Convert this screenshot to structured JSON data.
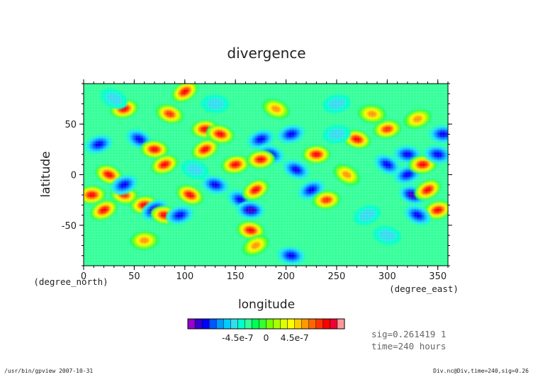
{
  "chart_data": {
    "type": "heatmap",
    "title": "divergence",
    "xlabel": "longitude",
    "ylabel": "latitude",
    "x_unit": "(degree_east)",
    "y_unit": "(degree_north)",
    "xlim": [
      0,
      360
    ],
    "ylim": [
      -90,
      90
    ],
    "x_ticks": [
      0,
      50,
      100,
      150,
      200,
      250,
      300,
      350
    ],
    "y_ticks": [
      -50,
      0,
      50
    ],
    "colorbar": {
      "tick_labels": [
        "-4.5e-7",
        "0",
        "4.5e-7"
      ],
      "colors": [
        "#9900cc",
        "#3300cc",
        "#0000ff",
        "#0055ff",
        "#0099ff",
        "#00ccff",
        "#33ddee",
        "#00ffcc",
        "#33ff99",
        "#00ff55",
        "#33ff33",
        "#77ff00",
        "#aaff00",
        "#ddff00",
        "#ffff00",
        "#ffcc00",
        "#ff9900",
        "#ff6600",
        "#ff3300",
        "#ff0000",
        "#ee0033",
        "#ff9999"
      ]
    },
    "features": [
      {
        "lon": 100,
        "lat": 82,
        "level": 19
      },
      {
        "lon": 205,
        "lat": -80,
        "level": 2
      },
      {
        "lon": 15,
        "lat": 30,
        "level": 2
      },
      {
        "lon": 25,
        "lat": 0,
        "level": 19
      },
      {
        "lon": 8,
        "lat": -20,
        "level": 19
      },
      {
        "lon": 20,
        "lat": -35,
        "level": 19
      },
      {
        "lon": 40,
        "lat": -20,
        "level": 18
      },
      {
        "lon": 40,
        "lat": 65,
        "level": 19
      },
      {
        "lon": 55,
        "lat": 35,
        "level": 2
      },
      {
        "lon": 70,
        "lat": 25,
        "level": 19
      },
      {
        "lon": 80,
        "lat": 10,
        "level": 19
      },
      {
        "lon": 85,
        "lat": 60,
        "level": 18
      },
      {
        "lon": 60,
        "lat": -30,
        "level": 19
      },
      {
        "lon": 70,
        "lat": -35,
        "level": 1
      },
      {
        "lon": 80,
        "lat": -40,
        "level": 19
      },
      {
        "lon": 95,
        "lat": -40,
        "level": 2
      },
      {
        "lon": 105,
        "lat": -20,
        "level": 19
      },
      {
        "lon": 120,
        "lat": 45,
        "level": 19
      },
      {
        "lon": 120,
        "lat": 25,
        "level": 19
      },
      {
        "lon": 135,
        "lat": 40,
        "level": 19
      },
      {
        "lon": 150,
        "lat": 10,
        "level": 19
      },
      {
        "lon": 155,
        "lat": -25,
        "level": 2
      },
      {
        "lon": 165,
        "lat": -35,
        "level": 1
      },
      {
        "lon": 175,
        "lat": 35,
        "level": 2
      },
      {
        "lon": 185,
        "lat": 20,
        "level": 2
      },
      {
        "lon": 175,
        "lat": 15,
        "level": 19
      },
      {
        "lon": 170,
        "lat": -15,
        "level": 19
      },
      {
        "lon": 165,
        "lat": -55,
        "level": 19
      },
      {
        "lon": 205,
        "lat": 40,
        "level": 2
      },
      {
        "lon": 210,
        "lat": 5,
        "level": 2
      },
      {
        "lon": 230,
        "lat": 20,
        "level": 19
      },
      {
        "lon": 225,
        "lat": -15,
        "level": 2
      },
      {
        "lon": 270,
        "lat": 35,
        "level": 19
      },
      {
        "lon": 300,
        "lat": 45,
        "level": 18
      },
      {
        "lon": 300,
        "lat": 10,
        "level": 2
      },
      {
        "lon": 320,
        "lat": 20,
        "level": 2
      },
      {
        "lon": 320,
        "lat": 0,
        "level": 2
      },
      {
        "lon": 325,
        "lat": -20,
        "level": 1
      },
      {
        "lon": 335,
        "lat": 10,
        "level": 19
      },
      {
        "lon": 340,
        "lat": -15,
        "level": 19
      },
      {
        "lon": 350,
        "lat": 20,
        "level": 2
      },
      {
        "lon": 350,
        "lat": -35,
        "level": 19
      },
      {
        "lon": 330,
        "lat": -40,
        "level": 2
      },
      {
        "lon": 355,
        "lat": 40,
        "level": 2
      },
      {
        "lon": 40,
        "lat": -10,
        "level": 2
      },
      {
        "lon": 130,
        "lat": -10,
        "level": 2
      },
      {
        "lon": 240,
        "lat": -25,
        "level": 18
      },
      {
        "lon": 260,
        "lat": 0,
        "level": 16
      },
      {
        "lon": 285,
        "lat": 60,
        "level": 16
      },
      {
        "lon": 330,
        "lat": 55,
        "level": 16
      },
      {
        "lon": 190,
        "lat": 65,
        "level": 16
      },
      {
        "lon": 60,
        "lat": -65,
        "level": 16
      },
      {
        "lon": 170,
        "lat": -70,
        "level": 16
      },
      {
        "lon": 300,
        "lat": -60,
        "level": 6
      },
      {
        "lon": 250,
        "lat": 70,
        "level": 6
      },
      {
        "lon": 30,
        "lat": 75,
        "level": 6
      },
      {
        "lon": 130,
        "lat": 70,
        "level": 6
      },
      {
        "lon": 280,
        "lat": -40,
        "level": 6
      },
      {
        "lon": 110,
        "lat": 5,
        "level": 6
      },
      {
        "lon": 250,
        "lat": 40,
        "level": 6
      }
    ]
  },
  "annotations": {
    "sig": "sig=0.261419 1",
    "time": "time=240 hours"
  },
  "footer": {
    "left": "/usr/bin/gpview  2007-10-31",
    "right": "Div.nc@Div,time=240,sig=0.26"
  }
}
